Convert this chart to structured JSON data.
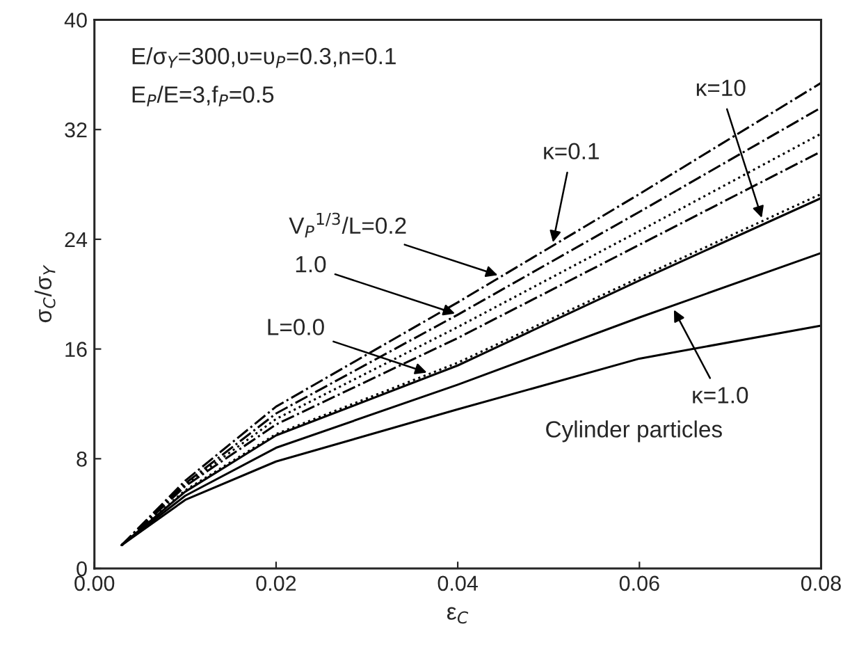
{
  "chart_data": {
    "type": "line",
    "xlabel": "ε$_{C}$",
    "ylabel": "σ$_{C}$/σ$_{Y}$",
    "x": [
      0.003,
      0.01,
      0.02,
      0.04,
      0.06,
      0.08
    ],
    "series": [
      {
        "color": "#000000",
        "line_style": "solid",
        "values": [
          1.7,
          5.0,
          7.8,
          11.6,
          15.3,
          17.7
        ]
      },
      {
        "color": "#000000",
        "line_style": "solid",
        "values": [
          1.7,
          5.3,
          8.8,
          13.4,
          18.3,
          23.0
        ]
      },
      {
        "color": "#000000",
        "line_style": "solid",
        "values": [
          1.7,
          5.6,
          9.7,
          14.8,
          21.0,
          27.0
        ]
      },
      {
        "color": "#000000",
        "line_style": "dotted",
        "values": [
          1.7,
          5.7,
          9.8,
          15.0,
          21.2,
          27.3
        ]
      },
      {
        "color": "#000000",
        "line_style": "dashed",
        "values": [
          1.7,
          6.0,
          10.5,
          16.8,
          23.6,
          30.4
        ]
      },
      {
        "color": "#000000",
        "line_style": "dotted",
        "values": [
          1.7,
          6.1,
          10.9,
          17.6,
          24.6,
          31.7
        ]
      },
      {
        "color": "#000000",
        "line_style": "dashed",
        "values": [
          1.7,
          6.2,
          11.3,
          18.5,
          26.0,
          33.6
        ]
      },
      {
        "color": "#000000",
        "line_style": "dashed",
        "values": [
          1.7,
          6.4,
          11.8,
          19.4,
          27.3,
          35.4
        ]
      }
    ],
    "xlim": [
      0.0,
      0.08
    ],
    "ylim": [
      0,
      40
    ],
    "xticks": [
      {
        "value": 0.0,
        "label": "0.00"
      },
      {
        "value": 0.02,
        "label": "0.02"
      },
      {
        "value": 0.04,
        "label": "0.04"
      },
      {
        "value": 0.06,
        "label": "0.06"
      },
      {
        "value": 0.08,
        "label": "0.08"
      }
    ],
    "yticks": [
      0,
      8,
      16,
      24,
      32,
      40
    ],
    "grid": false,
    "legend": false,
    "annotations": [
      "E/σ$_{Y}$=300,υ=υ$_{P}$=0.3,n=0.1",
      "E$_{P}$/E=3,f$_{P}$=0.5",
      {
        "text": "V$_{P}$$^{1/3}$/L=0.2",
        "x": 0.0448,
        "y": 21.3
      },
      {
        "text": "1.0",
        "x": 0.0401,
        "y": 18.5
      },
      {
        "text": "L=0.0",
        "x": 0.037,
        "y": 14.2
      },
      {
        "text": "κ=0.1",
        "x": 0.0504,
        "y": 23.5
      },
      {
        "text": "κ=10",
        "x": 0.0736,
        "y": 25.3
      },
      {
        "text": "κ=1.0",
        "x": 0.0636,
        "y": 19.1
      },
      "Cylinder particles"
    ]
  }
}
